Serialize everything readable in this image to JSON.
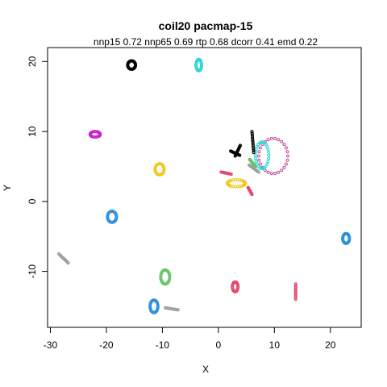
{
  "chart_data": {
    "type": "scatter",
    "title": "coil20 pacmap-15",
    "subtitle": "nnp15 0.72 nnp65 0.69 rtp 0.68 dcorr 0.41 emd 0.22",
    "xlabel": "X",
    "ylabel": "Y",
    "xlim": [
      -30.5,
      25.5
    ],
    "ylim": [
      -18,
      22
    ],
    "xticks": [
      -30,
      -20,
      -10,
      0,
      10,
      20
    ],
    "yticks": [
      -10,
      0,
      10,
      20
    ],
    "xtick_labels": [
      "-30",
      "-20",
      "-10",
      "0",
      "10",
      "20"
    ],
    "ytick_labels": [
      "-10",
      "0",
      "10",
      "20"
    ],
    "grid": false,
    "legend": "none",
    "clusters": [
      {
        "shape": "loop",
        "color": "#000000",
        "cx": -15.5,
        "cy": 19.5,
        "rx": 0.7,
        "ry": 0.6
      },
      {
        "shape": "loop",
        "color": "#2ad6d6",
        "cx": -3.5,
        "cy": 19.5,
        "rx": 0.5,
        "ry": 0.8
      },
      {
        "shape": "loop",
        "color": "#cc22cc",
        "cx": -22.0,
        "cy": 9.6,
        "rx": 0.9,
        "ry": 0.4
      },
      {
        "shape": "loop",
        "color": "#f5c518",
        "cx": -10.5,
        "cy": 4.6,
        "rx": 0.8,
        "ry": 0.8
      },
      {
        "shape": "loop",
        "color": "#2a8fd6",
        "cx": -19.0,
        "cy": -2.2,
        "rx": 0.8,
        "ry": 0.8
      },
      {
        "shape": "line",
        "color": "#9e9e9e",
        "x1": -28.5,
        "y1": -7.5,
        "x2": -26.8,
        "y2": -8.8
      },
      {
        "shape": "loop",
        "color": "#62c462",
        "cx": -9.5,
        "cy": -10.8,
        "rx": 0.8,
        "ry": 1.0
      },
      {
        "shape": "loop",
        "color": "#2a8fd6",
        "cx": -11.5,
        "cy": -15.0,
        "rx": 0.7,
        "ry": 0.9
      },
      {
        "shape": "line",
        "color": "#9e9e9e",
        "x1": -9.5,
        "y1": -15.2,
        "x2": -7.2,
        "y2": -15.5
      },
      {
        "shape": "loop",
        "color": "#e34a6f",
        "cx": 3.0,
        "cy": -12.2,
        "rx": 0.5,
        "ry": 0.7
      },
      {
        "shape": "line",
        "color": "#e34a6f",
        "x1": 13.8,
        "y1": -11.8,
        "x2": 13.8,
        "y2": -14.0
      },
      {
        "shape": "loop",
        "color": "#2a8fd6",
        "cx": 22.8,
        "cy": -5.3,
        "rx": 0.6,
        "ry": 0.7
      },
      {
        "shape": "loop",
        "color": "#c24b9f",
        "cx": 9.8,
        "cy": 6.5,
        "rx": 2.6,
        "ry": 2.5
      },
      {
        "shape": "loop",
        "color": "#2ad6d6",
        "cx": 7.8,
        "cy": 6.6,
        "rx": 1.2,
        "ry": 1.9
      },
      {
        "shape": "line",
        "color": "#000000",
        "x1": 6.0,
        "y1": 10.0,
        "x2": 6.3,
        "y2": 7.0
      },
      {
        "shape": "line",
        "color": "#000000",
        "x1": 3.8,
        "y1": 6.6,
        "x2": 2.2,
        "y2": 7.2
      },
      {
        "shape": "line",
        "color": "#000000",
        "x1": 3.9,
        "y1": 8.0,
        "x2": 3.0,
        "y2": 6.5
      },
      {
        "shape": "loop",
        "color": "#f5c518",
        "cx": 3.2,
        "cy": 2.6,
        "rx": 1.6,
        "ry": 0.5
      },
      {
        "shape": "line",
        "color": "#e34a6f",
        "x1": 0.5,
        "y1": 4.2,
        "x2": 2.3,
        "y2": 3.9
      },
      {
        "shape": "line",
        "color": "#e34a6f",
        "x1": 5.3,
        "y1": 2.0,
        "x2": 6.0,
        "y2": 1.0
      },
      {
        "shape": "line",
        "color": "#9e9e9e",
        "x1": 5.5,
        "y1": 5.2,
        "x2": 7.2,
        "y2": 4.2
      },
      {
        "shape": "line",
        "color": "#62c462",
        "x1": 5.6,
        "y1": 6.0,
        "x2": 6.6,
        "y2": 5.0
      }
    ]
  }
}
